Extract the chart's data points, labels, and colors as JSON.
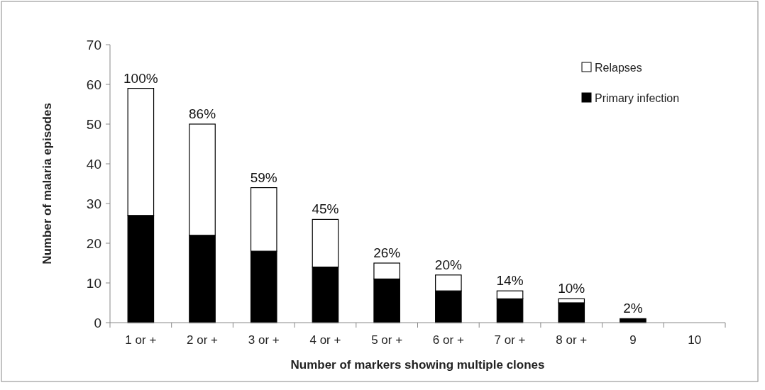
{
  "chart_data": {
    "type": "bar",
    "stacked": true,
    "xlabel": "Number of markers showing multiple clones",
    "ylabel": "Number of malaria episodes",
    "categories": [
      "1 or +",
      "2 or +",
      "3 or +",
      "4 or +",
      "5 or +",
      "6 or +",
      "7 or +",
      "8 or +",
      "9",
      "10"
    ],
    "series": [
      {
        "name": "Primary infection",
        "color": "#000000",
        "values": [
          27,
          22,
          18,
          14,
          11,
          8,
          6,
          5,
          1,
          0
        ]
      },
      {
        "name": "Relapses",
        "color": "#ffffff",
        "values": [
          32,
          28,
          16,
          12,
          4,
          4,
          2,
          1,
          0,
          0
        ]
      }
    ],
    "ylim": [
      0,
      70
    ],
    "yticks": [
      0,
      10,
      20,
      30,
      40,
      50,
      60,
      70
    ],
    "grid": false,
    "legend": "top right",
    "annotations": [
      {
        "text": "100%",
        "x": "1 or +",
        "y": 59
      },
      {
        "text": "86%",
        "x": "2 or +",
        "y": 50
      },
      {
        "text": "59%",
        "x": "3 or +",
        "y": 34
      },
      {
        "text": "45%",
        "x": "4 or +",
        "y": 26
      },
      {
        "text": "26%",
        "x": "5 or +",
        "y": 15
      },
      {
        "text": "20%",
        "x": "6 or +",
        "y": 12
      },
      {
        "text": "14%",
        "x": "7 or +",
        "y": 8
      },
      {
        "text": "10%",
        "x": "8 or +",
        "y": 6
      },
      {
        "text": "2%",
        "x": "9",
        "y": 1
      }
    ]
  }
}
